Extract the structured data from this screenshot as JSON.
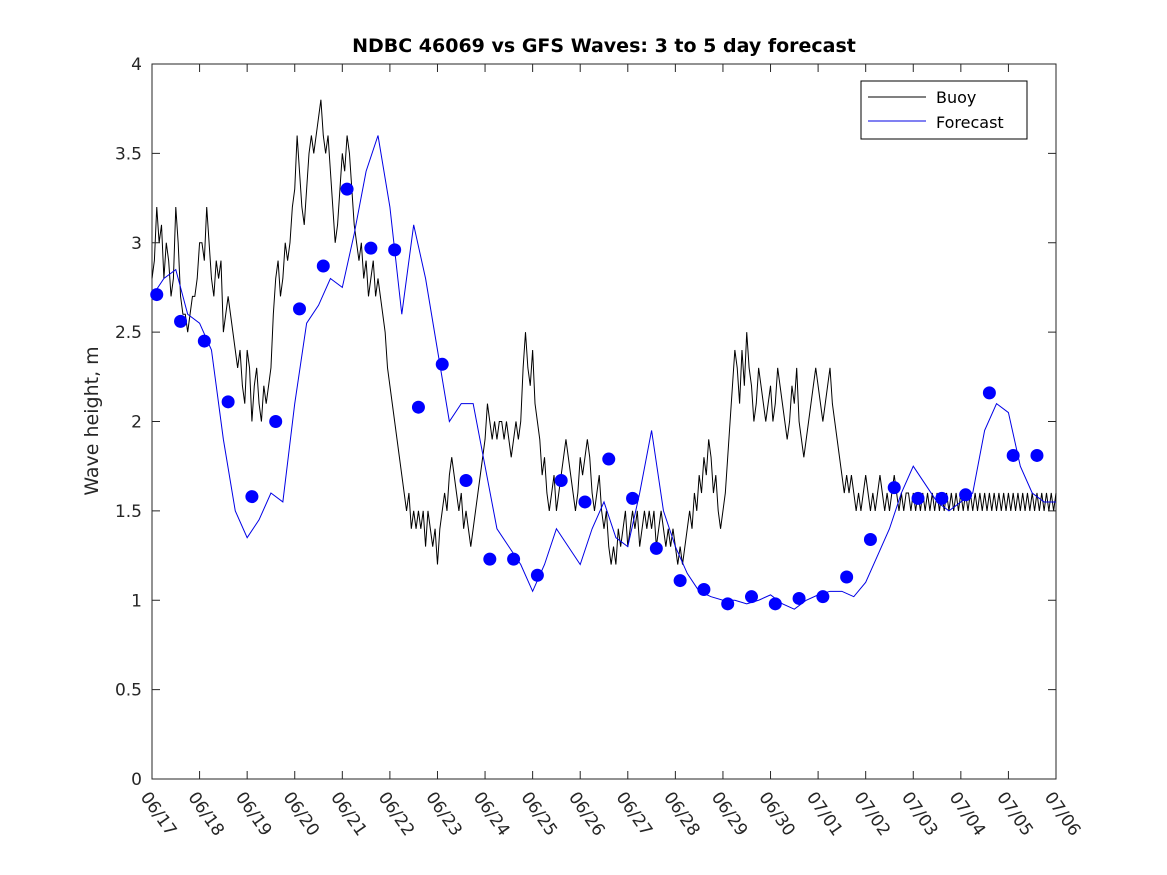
{
  "chart_data": {
    "type": "line",
    "title": "NDBC 46069 vs GFS Waves: 3 to 5 day forecast",
    "xlabel": "",
    "ylabel": "Wave height, m",
    "xlim": [
      "06/17",
      "07/06"
    ],
    "ylim": [
      0,
      4
    ],
    "x_ticks": [
      "06/17",
      "06/18",
      "06/19",
      "06/20",
      "06/21",
      "06/22",
      "06/23",
      "06/24",
      "06/25",
      "06/26",
      "06/27",
      "06/28",
      "06/29",
      "06/30",
      "07/01",
      "07/02",
      "07/03",
      "07/04",
      "07/05",
      "07/06"
    ],
    "y_ticks": [
      "0",
      "0.5",
      "1",
      "1.5",
      "2",
      "2.5",
      "3",
      "3.5",
      "4"
    ],
    "grid": false,
    "legend": {
      "placement": "top-right",
      "entries": [
        "Buoy",
        "Forecast"
      ]
    },
    "colors": {
      "buoy": "#000000",
      "forecast": "#0000e6",
      "markers": "#0000ff"
    },
    "series": [
      {
        "name": "Buoy",
        "x": [
          0,
          0.05,
          0.1,
          0.15,
          0.2,
          0.25,
          0.3,
          0.35,
          0.4,
          0.45,
          0.5,
          0.55,
          0.6,
          0.65,
          0.7,
          0.75,
          0.8,
          0.85,
          0.9,
          0.95,
          1,
          1.05,
          1.1,
          1.15,
          1.2,
          1.25,
          1.3,
          1.35,
          1.4,
          1.45,
          1.5,
          1.55,
          1.6,
          1.65,
          1.7,
          1.75,
          1.8,
          1.85,
          1.9,
          1.95,
          2,
          2.05,
          2.1,
          2.15,
          2.2,
          2.25,
          2.3,
          2.35,
          2.4,
          2.45,
          2.5,
          2.55,
          2.6,
          2.65,
          2.7,
          2.75,
          2.8,
          2.85,
          2.9,
          2.95,
          3,
          3.05,
          3.1,
          3.15,
          3.2,
          3.25,
          3.3,
          3.35,
          3.4,
          3.45,
          3.5,
          3.55,
          3.6,
          3.65,
          3.7,
          3.75,
          3.8,
          3.85,
          3.9,
          3.95,
          4,
          4.05,
          4.1,
          4.15,
          4.2,
          4.25,
          4.3,
          4.35,
          4.4,
          4.45,
          4.5,
          4.55,
          4.6,
          4.65,
          4.7,
          4.75,
          4.8,
          4.85,
          4.9,
          4.95,
          5,
          5.05,
          5.1,
          5.15,
          5.2,
          5.25,
          5.3,
          5.35,
          5.4,
          5.45,
          5.5,
          5.55,
          5.6,
          5.65,
          5.7,
          5.75,
          5.8,
          5.85,
          5.9,
          5.95,
          6,
          6.05,
          6.1,
          6.15,
          6.2,
          6.25,
          6.3,
          6.35,
          6.4,
          6.45,
          6.5,
          6.55,
          6.6,
          6.65,
          6.7,
          6.75,
          6.8,
          6.85,
          6.9,
          6.95,
          7,
          7.05,
          7.1,
          7.15,
          7.2,
          7.25,
          7.3,
          7.35,
          7.4,
          7.45,
          7.5,
          7.55,
          7.6,
          7.65,
          7.7,
          7.75,
          7.8,
          7.85,
          7.9,
          7.95,
          8,
          8.05,
          8.1,
          8.15,
          8.2,
          8.25,
          8.3,
          8.35,
          8.4,
          8.45,
          8.5,
          8.55,
          8.6,
          8.65,
          8.7,
          8.75,
          8.8,
          8.85,
          8.9,
          8.95,
          9,
          9.05,
          9.1,
          9.15,
          9.2,
          9.25,
          9.3,
          9.35,
          9.4,
          9.45,
          9.5,
          9.55,
          9.6,
          9.65,
          9.7,
          9.75,
          9.8,
          9.85,
          9.9,
          9.95,
          10,
          10.05,
          10.1,
          10.15,
          10.2,
          10.25,
          10.3,
          10.35,
          10.4,
          10.45,
          10.5,
          10.55,
          10.6,
          10.65,
          10.7,
          10.75,
          10.8,
          10.85,
          10.9,
          10.95,
          11,
          11.05,
          11.1,
          11.15,
          11.2,
          11.25,
          11.3,
          11.35,
          11.4,
          11.45,
          11.5,
          11.55,
          11.6,
          11.65,
          11.7,
          11.75,
          11.8,
          11.85,
          11.9,
          11.95,
          12,
          12.05,
          12.1,
          12.15,
          12.2,
          12.25,
          12.3,
          12.35,
          12.4,
          12.45,
          12.5,
          12.55,
          12.6,
          12.65,
          12.7,
          12.75,
          12.8,
          12.85,
          12.9,
          12.95,
          13,
          13.05,
          13.1,
          13.15,
          13.2,
          13.25,
          13.3,
          13.35,
          13.4,
          13.45,
          13.5,
          13.55,
          13.6,
          13.65,
          13.7,
          13.75,
          13.8,
          13.85,
          13.9,
          13.95,
          14,
          14.05,
          14.1,
          14.15,
          14.2,
          14.25,
          14.3,
          14.35,
          14.4,
          14.45,
          14.5,
          14.55,
          14.6,
          14.65,
          14.7,
          14.75,
          14.8,
          14.85,
          14.9,
          14.95,
          15,
          15.05,
          15.1,
          15.15,
          15.2,
          15.25,
          15.3,
          15.35,
          15.4,
          15.45,
          15.5,
          15.55,
          15.6,
          15.65,
          15.7,
          15.75,
          15.8,
          15.85,
          15.9,
          15.95,
          16,
          16.05,
          16.1,
          16.15,
          16.2,
          16.25,
          16.3,
          16.35,
          16.4,
          16.45,
          16.5,
          16.55,
          16.6,
          16.65,
          16.7,
          16.75,
          16.8,
          16.85,
          16.9,
          16.95,
          17,
          17.05,
          17.1,
          17.15,
          17.2,
          17.25,
          17.3,
          17.35,
          17.4,
          17.45,
          17.5,
          17.55,
          17.6,
          17.65,
          17.7,
          17.75,
          17.8,
          17.85,
          17.9,
          17.95,
          18,
          18.05,
          18.1,
          18.15,
          18.2,
          18.25,
          18.3,
          18.35,
          18.4,
          18.45,
          18.5,
          18.55,
          18.6,
          18.65,
          18.7,
          18.75,
          18.8,
          18.85,
          18.9,
          18.95,
          19
        ],
        "values": [
          2.8,
          2.9,
          3.2,
          3.0,
          3.1,
          2.8,
          3.0,
          2.9,
          2.7,
          2.8,
          3.2,
          3.0,
          2.7,
          2.6,
          2.6,
          2.5,
          2.6,
          2.7,
          2.7,
          2.8,
          3.0,
          3.0,
          2.9,
          3.2,
          3.0,
          2.8,
          2.7,
          2.9,
          2.8,
          2.9,
          2.5,
          2.6,
          2.7,
          2.6,
          2.5,
          2.4,
          2.3,
          2.4,
          2.2,
          2.1,
          2.4,
          2.3,
          2.0,
          2.2,
          2.3,
          2.1,
          2.0,
          2.2,
          2.1,
          2.2,
          2.3,
          2.6,
          2.8,
          2.9,
          2.7,
          2.8,
          3.0,
          2.9,
          3.0,
          3.2,
          3.3,
          3.6,
          3.4,
          3.2,
          3.1,
          3.3,
          3.5,
          3.6,
          3.5,
          3.6,
          3.7,
          3.8,
          3.6,
          3.5,
          3.6,
          3.4,
          3.2,
          3.0,
          3.1,
          3.3,
          3.5,
          3.4,
          3.6,
          3.5,
          3.3,
          3.1,
          3.0,
          2.9,
          3.0,
          2.8,
          2.9,
          2.7,
          2.8,
          2.9,
          2.7,
          2.8,
          2.7,
          2.6,
          2.5,
          2.3,
          2.2,
          2.1,
          2.0,
          1.9,
          1.8,
          1.7,
          1.6,
          1.5,
          1.6,
          1.4,
          1.5,
          1.4,
          1.5,
          1.4,
          1.5,
          1.3,
          1.5,
          1.4,
          1.3,
          1.4,
          1.2,
          1.4,
          1.5,
          1.6,
          1.5,
          1.7,
          1.8,
          1.7,
          1.6,
          1.5,
          1.6,
          1.4,
          1.5,
          1.4,
          1.3,
          1.4,
          1.5,
          1.6,
          1.7,
          1.8,
          1.9,
          2.1,
          2.0,
          1.9,
          2.0,
          1.9,
          2.0,
          2.0,
          1.9,
          2.0,
          1.9,
          1.8,
          1.9,
          2.0,
          1.9,
          2.0,
          2.3,
          2.5,
          2.3,
          2.2,
          2.4,
          2.1,
          2.0,
          1.9,
          1.7,
          1.8,
          1.6,
          1.5,
          1.6,
          1.7,
          1.5,
          1.6,
          1.7,
          1.8,
          1.9,
          1.8,
          1.7,
          1.6,
          1.5,
          1.6,
          1.8,
          1.7,
          1.8,
          1.9,
          1.8,
          1.6,
          1.5,
          1.6,
          1.7,
          1.5,
          1.4,
          1.5,
          1.3,
          1.2,
          1.3,
          1.2,
          1.4,
          1.3,
          1.4,
          1.5,
          1.3,
          1.4,
          1.5,
          1.4,
          1.5,
          1.3,
          1.4,
          1.5,
          1.4,
          1.5,
          1.4,
          1.5,
          1.3,
          1.4,
          1.5,
          1.4,
          1.3,
          1.4,
          1.3,
          1.4,
          1.3,
          1.2,
          1.3,
          1.2,
          1.3,
          1.4,
          1.5,
          1.4,
          1.6,
          1.5,
          1.7,
          1.6,
          1.8,
          1.7,
          1.9,
          1.8,
          1.6,
          1.7,
          1.5,
          1.4,
          1.5,
          1.6,
          1.8,
          2.0,
          2.2,
          2.4,
          2.3,
          2.1,
          2.4,
          2.2,
          2.5,
          2.3,
          2.2,
          2.0,
          2.1,
          2.3,
          2.2,
          2.1,
          2.0,
          2.1,
          2.2,
          2.0,
          2.1,
          2.3,
          2.2,
          2.1,
          2.0,
          1.9,
          2.0,
          2.2,
          2.1,
          2.3,
          2.0,
          1.9,
          1.8,
          1.9,
          2.0,
          2.1,
          2.2,
          2.3,
          2.2,
          2.1,
          2.0,
          2.1,
          2.2,
          2.3,
          2.1,
          2.0,
          1.9,
          1.8,
          1.7,
          1.6,
          1.7,
          1.6,
          1.7,
          1.6,
          1.5,
          1.6,
          1.5,
          1.6,
          1.7,
          1.6,
          1.5,
          1.6,
          1.5,
          1.6,
          1.7,
          1.6,
          1.5,
          1.6,
          1.5,
          1.6,
          1.7,
          1.6,
          1.5,
          1.6,
          1.5,
          1.6,
          1.6,
          1.5,
          1.6,
          1.5,
          1.6,
          1.5,
          1.6,
          1.5,
          1.6,
          1.5,
          1.6,
          1.5,
          1.6,
          1.5,
          1.6,
          1.5,
          1.6,
          1.5,
          1.6,
          1.5,
          1.6,
          1.5,
          1.6,
          1.5,
          1.6,
          1.5,
          1.6,
          1.5,
          1.6,
          1.5,
          1.6,
          1.5,
          1.6,
          1.5,
          1.6,
          1.5,
          1.6,
          1.5,
          1.6,
          1.5,
          1.6,
          1.5,
          1.6,
          1.5,
          1.6,
          1.5,
          1.6,
          1.5,
          1.6,
          1.5,
          1.6,
          1.5,
          1.6,
          1.5,
          1.6,
          1.5,
          1.6,
          1.5,
          1.6,
          1.5,
          1.6,
          1.5,
          1.6
        ]
      },
      {
        "name": "Forecast",
        "x": [
          0,
          0.25,
          0.5,
          0.75,
          1,
          1.25,
          1.5,
          1.75,
          2,
          2.25,
          2.5,
          2.75,
          3,
          3.25,
          3.5,
          3.75,
          4,
          4.25,
          4.5,
          4.75,
          5,
          5.25,
          5.5,
          5.75,
          6,
          6.25,
          6.5,
          6.75,
          7,
          7.25,
          7.5,
          7.75,
          8,
          8.25,
          8.5,
          8.75,
          9,
          9.25,
          9.5,
          9.75,
          10,
          10.25,
          10.5,
          10.75,
          11,
          11.25,
          11.5,
          11.75,
          12,
          12.25,
          12.5,
          12.75,
          13,
          13.25,
          13.5,
          13.75,
          14,
          14.25,
          14.5,
          14.75,
          15,
          15.25,
          15.5,
          15.75,
          16,
          16.25,
          16.5,
          16.75,
          17,
          17.25,
          17.5,
          17.75,
          18,
          18.25,
          18.5,
          18.75,
          19
        ],
        "values": [
          2.7,
          2.8,
          2.85,
          2.6,
          2.55,
          2.4,
          1.9,
          1.5,
          1.35,
          1.45,
          1.6,
          1.55,
          2.1,
          2.55,
          2.65,
          2.8,
          2.75,
          3.05,
          3.4,
          3.6,
          3.2,
          2.6,
          3.1,
          2.8,
          2.4,
          2.0,
          2.1,
          2.1,
          1.75,
          1.4,
          1.3,
          1.2,
          1.05,
          1.2,
          1.4,
          1.3,
          1.2,
          1.4,
          1.55,
          1.35,
          1.3,
          1.6,
          1.95,
          1.5,
          1.3,
          1.15,
          1.05,
          1.02,
          1.0,
          1.0,
          0.98,
          1.0,
          1.03,
          0.98,
          0.95,
          1.0,
          1.03,
          1.05,
          1.05,
          1.02,
          1.1,
          1.25,
          1.4,
          1.6,
          1.75,
          1.65,
          1.55,
          1.5,
          1.55,
          1.6,
          1.95,
          2.1,
          2.05,
          1.75,
          1.6,
          1.55,
          1.55
        ]
      }
    ],
    "markers": {
      "name": "Forecast markers",
      "x": [
        0.1,
        0.6,
        1.1,
        1.6,
        2.1,
        2.6,
        3.1,
        3.6,
        4.1,
        4.6,
        5.1,
        5.6,
        6.1,
        6.6,
        7.1,
        7.6,
        8.1,
        8.6,
        9.1,
        9.6,
        10.1,
        10.6,
        11.1,
        11.6,
        12.1,
        12.6,
        13.1,
        13.6,
        14.1,
        14.6,
        15.1,
        15.6,
        16.1,
        16.6,
        17.1,
        17.6,
        18.1,
        18.6
      ],
      "values": [
        2.71,
        2.56,
        2.45,
        2.11,
        1.58,
        2.0,
        2.63,
        2.87,
        3.3,
        2.97,
        2.96,
        2.08,
        2.32,
        1.67,
        1.23,
        1.23,
        1.14,
        1.67,
        1.55,
        1.79,
        1.57,
        1.29,
        1.11,
        1.06,
        0.98,
        1.02,
        0.98,
        1.01,
        1.02,
        1.13,
        1.34,
        1.63,
        1.57,
        1.57,
        1.59,
        2.16,
        1.81,
        1.81
      ]
    }
  }
}
